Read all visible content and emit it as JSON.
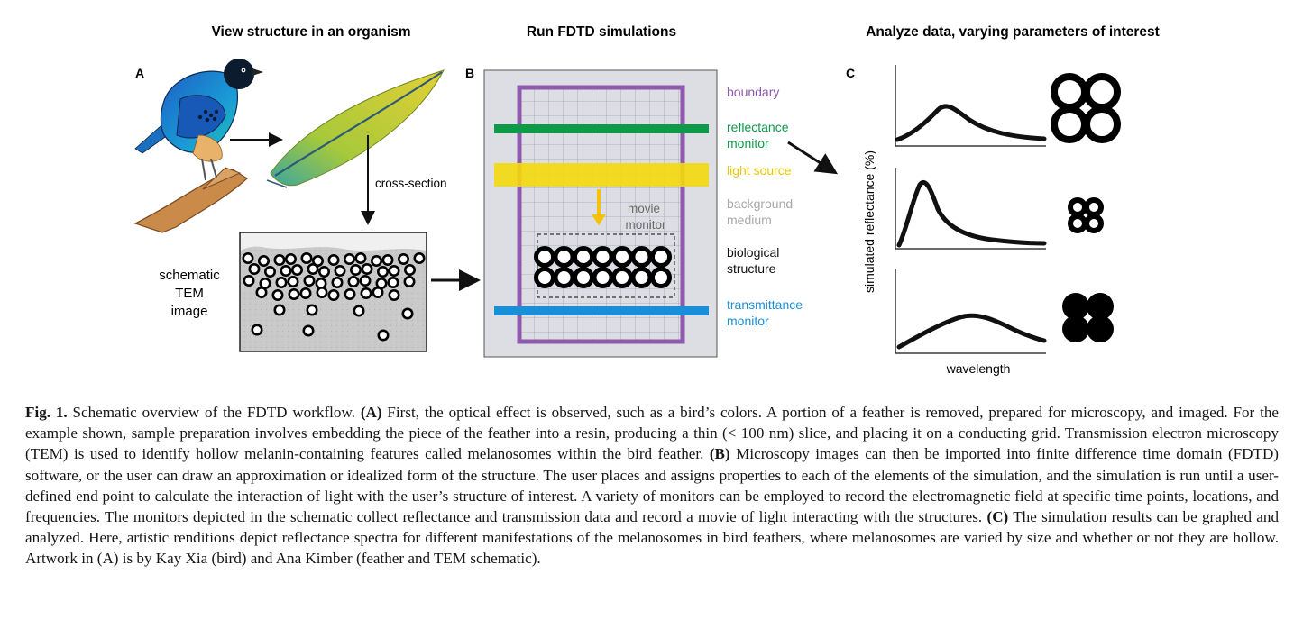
{
  "figure": {
    "headers": {
      "a": "View structure in an organism",
      "b": "Run FDTD simulations",
      "c": "Analyze data, varying parameters of interest"
    },
    "panel_letters": {
      "a": "A",
      "b": "B",
      "c": "C"
    },
    "panel_a": {
      "cross_section_label": "cross-section",
      "tem_label_lines": [
        "schematic",
        "TEM",
        "image"
      ]
    },
    "panel_b": {
      "boundary": {
        "text": "boundary",
        "color": "#8e5aab"
      },
      "reflectance_monitor": {
        "lines": [
          "reflectance",
          "monitor"
        ],
        "color": "#0f9a4a"
      },
      "light_source": {
        "text": "light source",
        "color": "#e8c60a"
      },
      "background_medium": {
        "lines": [
          "background",
          "medium"
        ],
        "color": "#a8a8a8"
      },
      "movie_monitor": {
        "lines": [
          "movie",
          "monitor"
        ],
        "color": "#6a6a6a"
      },
      "biological_structure": {
        "lines": [
          "biological",
          "structure"
        ],
        "color": "#111111"
      },
      "transmittance_monitor": {
        "lines": [
          "transmittance",
          "monitor"
        ],
        "color": "#1a8fd8"
      }
    },
    "panel_c": {
      "ylabel": "simulated reflectance (%)",
      "xlabel": "wavelength"
    }
  },
  "caption": {
    "fig_label": "Fig. 1.",
    "intro": " Schematic overview of the FDTD workflow. ",
    "a_label": "(A)",
    "a_text": " First, the optical effect is observed, such as a bird’s colors. A portion of a feather is removed, prepared for microscopy, and imaged. For the example shown, sample preparation involves embedding the piece of the feather into a resin, producing a thin (< 100 nm) slice, and placing it on a conducting grid. Transmission electron microscopy (TEM) is used to identify hollow melanin-containing features called melanosomes within the bird feather. ",
    "b_label": "(B)",
    "b_text": " Microscopy images can then be imported into finite difference time domain (FDTD) software, or the user can draw an approximation or idealized form of the structure. The user places and assigns properties to each of the elements of the simulation, and the simulation is run until a user-defined end point to calculate the interaction of light with the user’s structure of interest. A variety of monitors can be employed to record the electromagnetic field at specific time points, locations, and frequencies. The monitors depicted in the schematic collect reflectance and transmission data and record a movie of light interacting with the structures. ",
    "c_label": "(C)",
    "c_text": " The simulation results can be graphed and analyzed. Here, artistic renditions depict reflectance spectra for different manifestations of the melanosomes in bird feathers, where melanosomes are varied by size and whether or not they are hollow. Artwork in (A) is by Kay Xia (bird) and Ana Kimber (feather and TEM schematic)."
  }
}
